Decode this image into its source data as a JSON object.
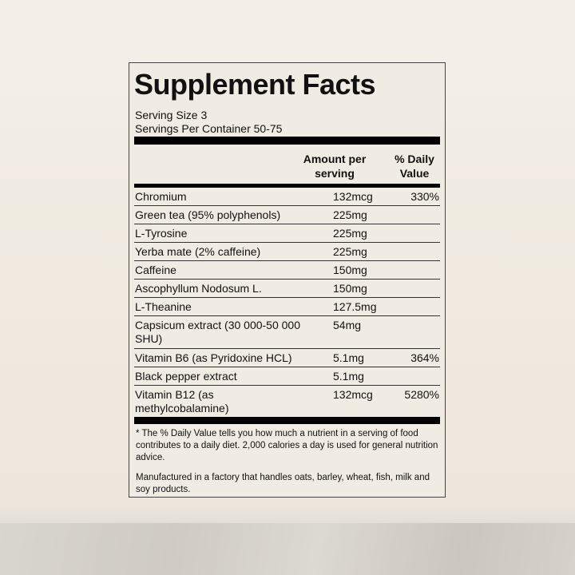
{
  "label": {
    "title": "Supplement Facts",
    "serving_size": "Serving Size 3",
    "servings_per_container": "Servings Per Container 50-75",
    "col_amount": "Amount per serving",
    "col_dv": "% Daily Value",
    "rows": [
      {
        "name": "Chromium",
        "amount": "132mcg",
        "dv": "330%"
      },
      {
        "name": "Green tea (95% polyphenols)",
        "amount": "225mg",
        "dv": ""
      },
      {
        "name": "L-Tyrosine",
        "amount": "225mg",
        "dv": ""
      },
      {
        "name": "Yerba mate (2% caffeine)",
        "amount": "225mg",
        "dv": ""
      },
      {
        "name": "Caffeine",
        "amount": "150mg",
        "dv": ""
      },
      {
        "name": "Ascophyllum Nodosum L.",
        "amount": "150mg",
        "dv": ""
      },
      {
        "name": "L-Theanine",
        "amount": "127.5mg",
        "dv": ""
      },
      {
        "name": "Capsicum extract (30 000-50 000 SHU)",
        "amount": "54mg",
        "dv": ""
      },
      {
        "name": "Vitamin B6 (as Pyridoxine HCL)",
        "amount": "5.1mg",
        "dv": "364%"
      },
      {
        "name": "Black pepper extract",
        "amount": "5.1mg",
        "dv": ""
      },
      {
        "name": "Vitamin B12 (as methylcobalamine)",
        "amount": "132mcg",
        "dv": "5280%"
      }
    ],
    "footnote": "* The % Daily Value tells you how much a nutrient in a serving of food contributes to a daily diet. 2,000 calories a day is used for general nutrition advice.",
    "allergen": "Manufactured in a factory that handles oats, barley, wheat, fish, milk and soy products."
  }
}
